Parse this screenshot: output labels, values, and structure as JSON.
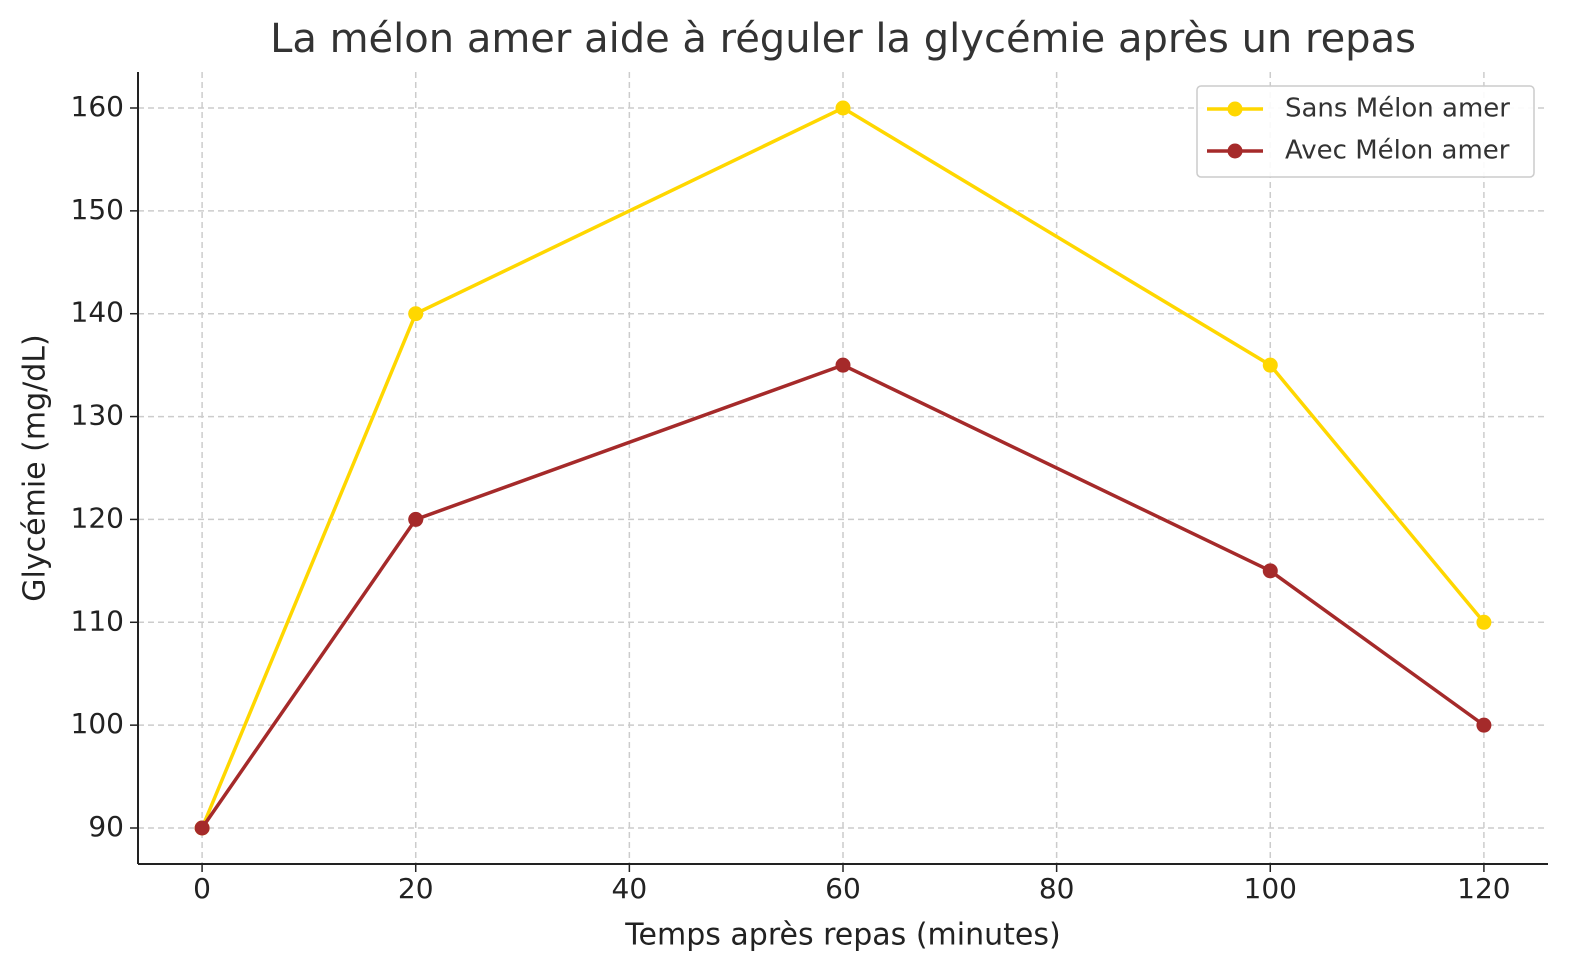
{
  "chart_data": {
    "type": "line",
    "title": "La mélon amer aide à réguler la glycémie après un repas",
    "xlabel": "Temps après repas (minutes)",
    "ylabel": "Glycémie (mg/dL)",
    "x": [
      0,
      20,
      60,
      100,
      120
    ],
    "series": [
      {
        "name": "Sans Mélon amer",
        "color": "#ffd700",
        "values": [
          90,
          140,
          160,
          135,
          110
        ]
      },
      {
        "name": "Avec Mélon amer",
        "color": "#a52a2a",
        "values": [
          90,
          120,
          135,
          115,
          100
        ]
      }
    ],
    "xlim": [
      -6,
      126
    ],
    "xticks": [
      0,
      20,
      40,
      60,
      80,
      100,
      120
    ],
    "ylim": [
      86.5,
      163.5
    ],
    "yticks": [
      90,
      100,
      110,
      120,
      130,
      140,
      150,
      160
    ],
    "grid": true,
    "legend": "upper right"
  }
}
